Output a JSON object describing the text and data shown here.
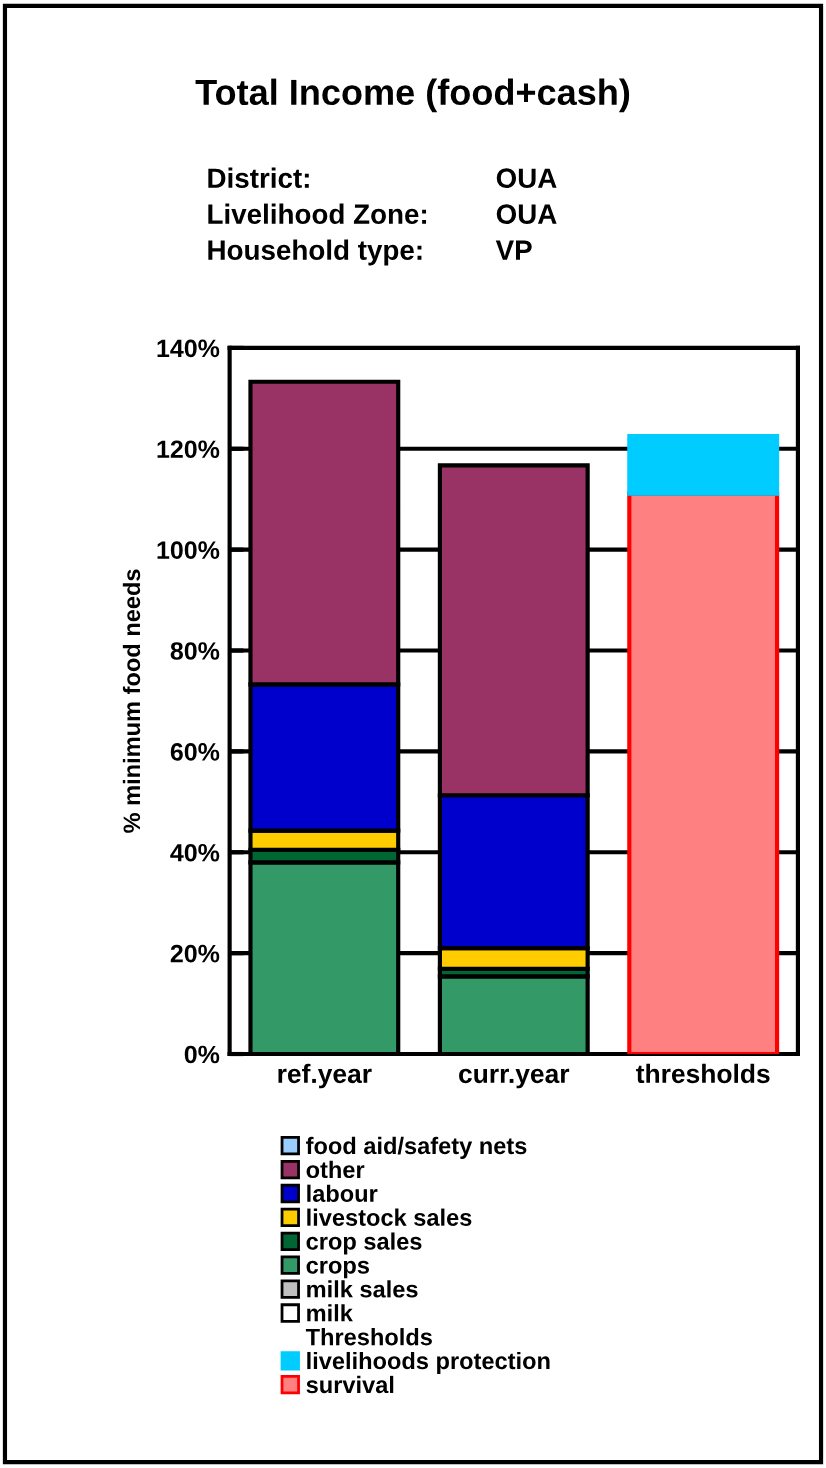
{
  "chart_data": {
    "type": "bar",
    "title": "Total Income (food+cash)",
    "ylabel": "% minimum food needs",
    "categories": [
      "ref.year",
      "curr.year",
      "thresholds"
    ],
    "stacked": true,
    "series": [
      {
        "name": "milk",
        "color": "#ffffff",
        "values": [
          0,
          0,
          null
        ]
      },
      {
        "name": "milk sales",
        "color": "#c0c0c0",
        "values": [
          0,
          0,
          null
        ]
      },
      {
        "name": "crops",
        "color": "#339966",
        "values": [
          38,
          15.4,
          null
        ]
      },
      {
        "name": "crop sales",
        "color": "#006633",
        "values": [
          2.5,
          1.5,
          null
        ]
      },
      {
        "name": "livestock sales",
        "color": "#ffcc00",
        "values": [
          3.8,
          4.1,
          null
        ]
      },
      {
        "name": "labour",
        "color": "#0000cc",
        "values": [
          29,
          30.3,
          null
        ]
      },
      {
        "name": "other",
        "color": "#993366",
        "values": [
          60,
          65.4,
          null
        ]
      },
      {
        "name": "food aid/safety nets",
        "color": "#99ccff",
        "values": [
          0,
          0,
          null
        ]
      },
      {
        "name": "survival",
        "color": "#ff8080",
        "values": [
          null,
          null,
          111.1
        ]
      },
      {
        "name": "livelihoods protection",
        "color": "#00ccff",
        "values": [
          null,
          null,
          11.4
        ]
      }
    ],
    "ylim": [
      0,
      140
    ],
    "yticks": [
      {
        "value": 0,
        "label": "0%"
      },
      {
        "value": 20,
        "label": "20%"
      },
      {
        "value": 40,
        "label": "40%"
      },
      {
        "value": 60,
        "label": "60%"
      },
      {
        "value": 80,
        "label": "80%"
      },
      {
        "value": 100,
        "label": "100%"
      },
      {
        "value": 120,
        "label": "120%"
      },
      {
        "value": 140,
        "label": "140%"
      }
    ],
    "grid": "y",
    "legend": "bottom",
    "annotations": [
      "District:",
      "OUA",
      "Livelihood Zone:",
      "OUA",
      "Household type:",
      "VP",
      "Thresholds"
    ]
  }
}
